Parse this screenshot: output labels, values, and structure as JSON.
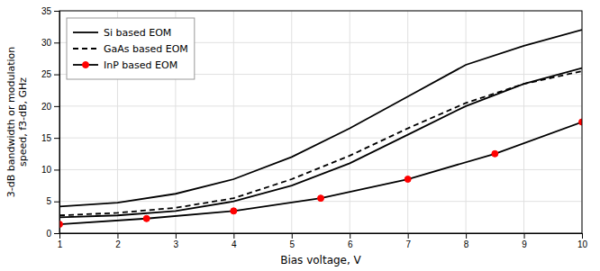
{
  "chart_data": {
    "type": "line",
    "xlabel": "Bias voltage, V",
    "ylabel": "3-dB bandwidth or modulation\nspeed, f3-dB, GHz",
    "xlim": [
      1,
      10
    ],
    "ylim": [
      0,
      35
    ],
    "xticks": [
      1,
      2,
      3,
      4,
      5,
      6,
      7,
      8,
      9,
      10
    ],
    "yticks": [
      0,
      5,
      10,
      15,
      20,
      25,
      30,
      35
    ],
    "grid": true,
    "legend": "upper-left",
    "series": [
      {
        "name": "Si based EOM",
        "color": "#000000",
        "line_style": "solid",
        "x": [
          1,
          2,
          3,
          4,
          5,
          6,
          7,
          8,
          9,
          10
        ],
        "values": [
          4.2,
          4.8,
          6.2,
          8.5,
          12.0,
          16.5,
          21.5,
          26.5,
          29.5,
          32.0
        ]
      },
      {
        "color": "#000000",
        "line_style": "solid",
        "x": [
          1,
          2,
          3,
          4,
          5,
          6,
          7,
          8,
          9,
          10
        ],
        "values": [
          2.5,
          2.8,
          3.5,
          5.0,
          7.5,
          11.0,
          15.5,
          20.0,
          23.5,
          26.0
        ]
      },
      {
        "name": "GaAs based EOM",
        "color": "#000000",
        "line_style": "dashed",
        "x": [
          1,
          2,
          3,
          4,
          5,
          6,
          7,
          8,
          9,
          10
        ],
        "values": [
          2.8,
          3.2,
          4.0,
          5.5,
          8.5,
          12.2,
          16.5,
          20.5,
          23.5,
          25.5
        ]
      },
      {
        "name": "InP based EOM",
        "color": "#000000",
        "line_style": "solid",
        "marker": "circle",
        "colors": [
          "#ff0000",
          "#ff0000",
          "#ff0000",
          "#ff0000",
          "#ff0000",
          "#ff0000",
          "#ff0000"
        ],
        "x": [
          1,
          2.5,
          4,
          5.5,
          7,
          8.5,
          10
        ],
        "values": [
          1.4,
          2.3,
          3.5,
          5.5,
          8.5,
          12.5,
          17.5
        ]
      }
    ]
  }
}
